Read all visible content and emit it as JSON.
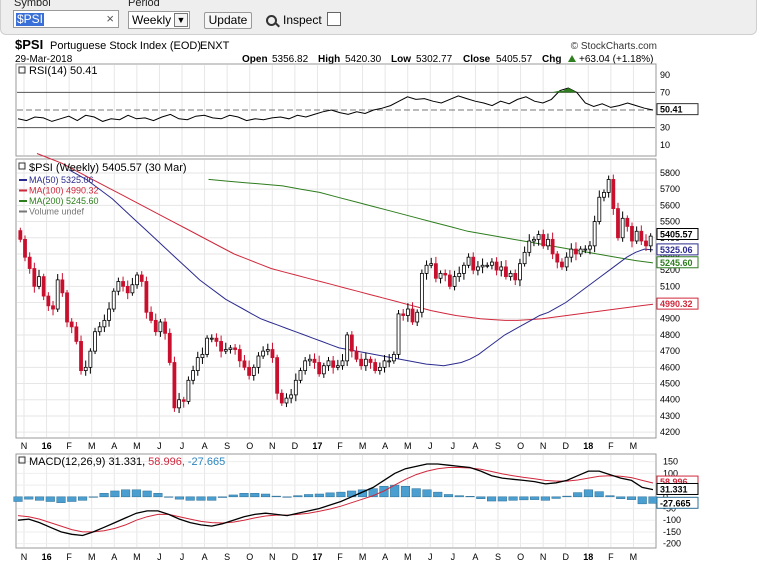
{
  "toolbar": {
    "symbol_label": "Symbol",
    "symbol_value": "$PSI",
    "clear_glyph": "×",
    "period_label": "Period",
    "period_value": "Weekly",
    "update_label": "Update",
    "inspect_label": "Inspect"
  },
  "header": {
    "symbol": "$PSI",
    "name": "Portuguese Stock Index (EOD)",
    "exchange": "ENXT",
    "watermark": "© StockCharts.com",
    "date": "29-Mar-2018",
    "open_label": "Open",
    "open": "5356.82",
    "high_label": "High",
    "high": "5420.30",
    "low_label": "Low",
    "low": "5302.77",
    "close_label": "Close",
    "close": "5405.57",
    "chg_label": "Chg",
    "chg": "+63.04 (+1.18%)",
    "chg_icon": "up-triangle-icon"
  },
  "rsi": {
    "label": "RSI(14) 50.41",
    "ticks": [
      "90",
      "70",
      "50",
      "30",
      "10"
    ],
    "value_box": "50.41"
  },
  "price": {
    "label": "$PSI (Weekly) 5405.57 (30 Mar)",
    "legend": [
      {
        "text": "MA(50) 5325.06",
        "color": "#2b2b8f"
      },
      {
        "text": "MA(100) 4990.32",
        "color": "#d0283c"
      },
      {
        "text": "MA(200) 5245.60",
        "color": "#2e7d1e"
      },
      {
        "text": "Volume undef",
        "color": "#777777"
      }
    ],
    "ticks": [
      "5800",
      "5700",
      "5600",
      "5500",
      "5400",
      "5300",
      "5200",
      "5100",
      "5000",
      "4900",
      "4800",
      "4700",
      "4600",
      "4500",
      "4400",
      "4300",
      "4200"
    ],
    "boxes": {
      "close": "5405.57",
      "ma50": "5325.06",
      "ma200": "5245.60",
      "ma100": "4990.32"
    }
  },
  "macd": {
    "label": "MACD(12,26,9) 31.331, 58.996, -27.665",
    "label_parts": {
      "name": "MACD(12,26,9) 31.331,",
      "signal": "58.996,",
      "hist": "-27.665"
    },
    "ticks": [
      "150",
      "100",
      "50",
      "0",
      "-50",
      "-100",
      "-150",
      "-200"
    ],
    "boxes": {
      "signal": "58.996",
      "macd": "31.331",
      "hist": "-27.665"
    }
  },
  "xaxis": [
    "N",
    "16",
    "F",
    "M",
    "A",
    "M",
    "J",
    "J",
    "A",
    "S",
    "O",
    "N",
    "D",
    "17",
    "F",
    "M",
    "A",
    "M",
    "J",
    "J",
    "A",
    "S",
    "O",
    "N",
    "D",
    "18",
    "F",
    "M"
  ],
  "colors": {
    "up": "#000000",
    "down": "#c8102e",
    "ma50": "#2b2b8f",
    "ma100": "#d0283c",
    "ma200": "#2e7d1e",
    "hist": "#4a9fd0"
  },
  "chart_data": {
    "type": "candlestick",
    "title": "$PSI Portuguese Stock Index (EOD) ENXT",
    "period": "Weekly",
    "x_range": [
      "2015-11",
      "2018-03"
    ],
    "price_ylim": [
      4170,
      5880
    ],
    "closes": [
      5390,
      5280,
      5210,
      5100,
      5160,
      5040,
      4980,
      4960,
      5140,
      5060,
      4880,
      4850,
      4760,
      4580,
      4600,
      4700,
      4820,
      4850,
      4890,
      4960,
      5070,
      5130,
      5100,
      5060,
      5110,
      5170,
      5130,
      4940,
      4890,
      4820,
      4880,
      4810,
      4630,
      4350,
      4400,
      4390,
      4520,
      4580,
      4660,
      4680,
      4780,
      4780,
      4760,
      4700,
      4710,
      4720,
      4710,
      4640,
      4600,
      4550,
      4600,
      4670,
      4700,
      4710,
      4660,
      4440,
      4380,
      4410,
      4430,
      4520,
      4580,
      4640,
      4650,
      4630,
      4560,
      4610,
      4640,
      4600,
      4610,
      4640,
      4800,
      4700,
      4650,
      4610,
      4650,
      4630,
      4580,
      4600,
      4640,
      4640,
      4680,
      4930,
      4920,
      4960,
      4880,
      4940,
      5180,
      5230,
      5240,
      5150,
      5180,
      5170,
      5100,
      5160,
      5180,
      5230,
      5280,
      5200,
      5220,
      5230,
      5230,
      5250,
      5200,
      5220,
      5160,
      5180,
      5140,
      5240,
      5310,
      5380,
      5390,
      5420,
      5350,
      5390,
      5300,
      5250,
      5220,
      5280,
      5330,
      5300,
      5330,
      5330,
      5350,
      5500,
      5650,
      5680,
      5760,
      5580,
      5400,
      5520,
      5470,
      5380,
      5440,
      5380,
      5350,
      5410
    ],
    "ma50": [
      5820,
      5790,
      5760,
      5720,
      5680,
      5640,
      5590,
      5540,
      5490,
      5440,
      5390,
      5340,
      5290,
      5240,
      5190,
      5140,
      5100,
      5060,
      5020,
      4990,
      4960,
      4930,
      4900,
      4880,
      4860,
      4840,
      4820,
      4800,
      4780,
      4760,
      4740,
      4720,
      4710,
      4700,
      4690,
      4680,
      4670,
      4660,
      4650,
      4640,
      4630,
      4620,
      4615,
      4610,
      4620,
      4630,
      4650,
      4680,
      4720,
      4760,
      4800,
      4830,
      4860,
      4890,
      4920,
      4940,
      4970,
      5000,
      5040,
      5080,
      5120,
      5160,
      5200,
      5240,
      5280,
      5310,
      5330,
      5325
    ],
    "ma100": [
      5920,
      5890,
      5860,
      5820,
      5780,
      5740,
      5700,
      5660,
      5620,
      5580,
      5540,
      5500,
      5460,
      5420,
      5380,
      5340,
      5300,
      5270,
      5240,
      5210,
      5190,
      5170,
      5150,
      5130,
      5110,
      5090,
      5070,
      5050,
      5030,
      5010,
      4990,
      4970,
      4950,
      4935,
      4920,
      4910,
      4900,
      4895,
      4890,
      4890,
      4895,
      4900,
      4910,
      4920,
      4930,
      4940,
      4950,
      4960,
      4970,
      4980,
      4990
    ],
    "ma200": [
      5760,
      5750,
      5740,
      5730,
      5720,
      5700,
      5680,
      5650,
      5620,
      5590,
      5560,
      5530,
      5500,
      5470,
      5440,
      5420,
      5400,
      5380,
      5360,
      5340,
      5320,
      5300,
      5280,
      5260,
      5245
    ],
    "rsi_ylim": [
      0,
      100
    ],
    "rsi": [
      40,
      38,
      42,
      41,
      37,
      40,
      43,
      38,
      44,
      42,
      37,
      40,
      39,
      44,
      40,
      41,
      38,
      42,
      45,
      40,
      39,
      43,
      44,
      41,
      40,
      44,
      42,
      38,
      40,
      39,
      41,
      42,
      40,
      44,
      42,
      45,
      48,
      50,
      47,
      45,
      48,
      46,
      50,
      52,
      55,
      60,
      65,
      62,
      63,
      60,
      58,
      62,
      66,
      63,
      60,
      58,
      55,
      60,
      57,
      62,
      65,
      60,
      58,
      62,
      72,
      75,
      70,
      58,
      54,
      57,
      53,
      55,
      58,
      55,
      52,
      50
    ],
    "macd_ylim": [
      -210,
      170
    ],
    "macd": [
      -100,
      -95,
      -110,
      -130,
      -150,
      -160,
      -165,
      -150,
      -130,
      -110,
      -90,
      -70,
      -60,
      -60,
      -75,
      -95,
      -110,
      -120,
      -125,
      -115,
      -100,
      -85,
      -75,
      -70,
      -75,
      -80,
      -70,
      -60,
      -50,
      -35,
      -20,
      0,
      20,
      40,
      70,
      100,
      120,
      130,
      140,
      140,
      135,
      130,
      125,
      110,
      90,
      80,
      75,
      70,
      65,
      55,
      60,
      70,
      90,
      110,
      110,
      95,
      80,
      70,
      40,
      31
    ],
    "signal": [
      -80,
      -85,
      -95,
      -110,
      -125,
      -140,
      -150,
      -150,
      -145,
      -135,
      -120,
      -100,
      -85,
      -75,
      -75,
      -85,
      -95,
      -105,
      -110,
      -112,
      -108,
      -100,
      -90,
      -82,
      -78,
      -78,
      -75,
      -70,
      -62,
      -52,
      -40,
      -25,
      -10,
      5,
      25,
      50,
      75,
      95,
      110,
      120,
      125,
      125,
      123,
      118,
      108,
      98,
      90,
      83,
      77,
      70,
      67,
      67,
      72,
      80,
      88,
      90,
      88,
      82,
      70,
      59
    ],
    "hist": [
      -20,
      -10,
      -15,
      -20,
      -25,
      -20,
      -15,
      0,
      15,
      25,
      30,
      30,
      25,
      15,
      0,
      -10,
      -15,
      -15,
      -15,
      -3,
      8,
      15,
      15,
      12,
      3,
      -2,
      5,
      10,
      12,
      17,
      20,
      25,
      30,
      35,
      45,
      50,
      45,
      35,
      30,
      20,
      10,
      5,
      2,
      -8,
      -18,
      -18,
      -15,
      -13,
      -12,
      -15,
      -7,
      3,
      18,
      30,
      22,
      5,
      -8,
      -12,
      -30,
      -28
    ]
  }
}
